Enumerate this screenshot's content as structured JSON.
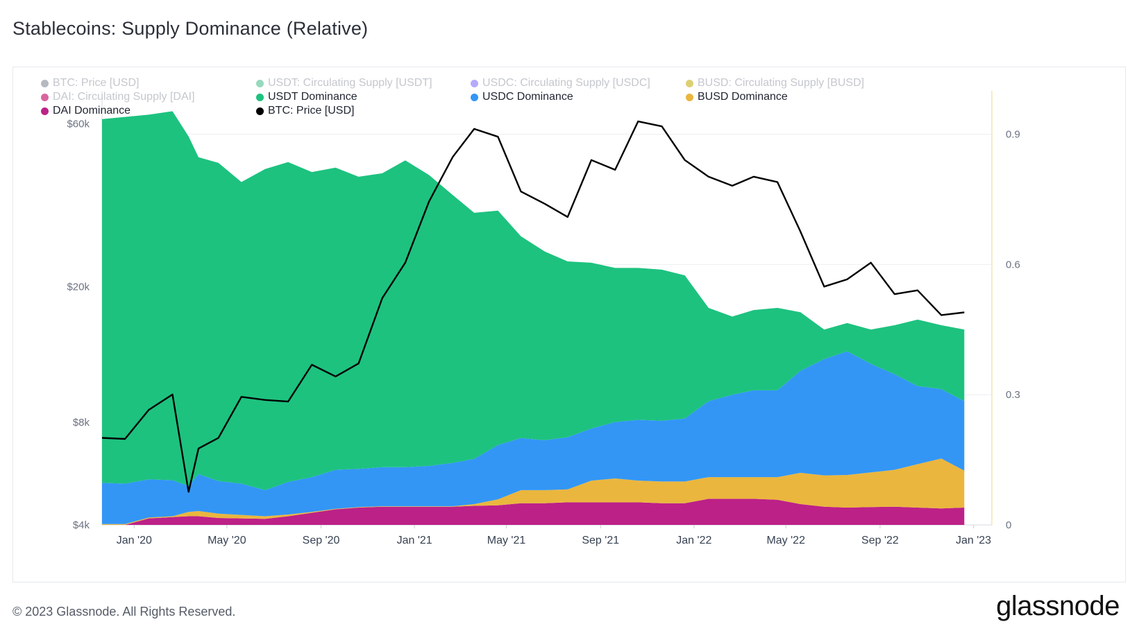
{
  "title": "Stablecoins: Supply Dominance (Relative)",
  "footer": {
    "copyright": "© 2023 Glassnode. All Rights Reserved.",
    "brand": "glassnode"
  },
  "legend": [
    {
      "label": "BTC: Price [USD]",
      "color": "#8e959f",
      "active": false
    },
    {
      "label": "USDT: Circulating Supply [USDT]",
      "color": "#5fc49a",
      "active": false
    },
    {
      "label": "USDC: Circulating Supply [USDC]",
      "color": "#8a7cf7",
      "active": false
    },
    {
      "label": "BUSD: Circulating Supply [BUSD]",
      "color": "#c9b72a",
      "active": false
    },
    {
      "label": "DAI: Circulating Supply [DAI]",
      "color": "#c4126a",
      "active": false
    },
    {
      "label": "USDT Dominance",
      "color": "#1dc27f",
      "active": true
    },
    {
      "label": "USDC Dominance",
      "color": "#3396f5",
      "active": true
    },
    {
      "label": "BUSD Dominance",
      "color": "#eab63e",
      "active": true
    },
    {
      "label": "DAI Dominance",
      "color": "#bc2187",
      "active": true
    },
    {
      "label": "BTC: Price [USD]",
      "color": "#000000",
      "active": true
    }
  ],
  "chart_data": {
    "type": "area",
    "x_ticks": [
      "Jan '20",
      "May '20",
      "Sep '20",
      "Jan '21",
      "May '21",
      "Sep '21",
      "Jan '22",
      "May '22",
      "Sep '22",
      "Jan '23"
    ],
    "y_left": {
      "scale": "log",
      "ticks": [
        "$4k",
        "$8k",
        "$20k",
        "$60k"
      ],
      "tick_values": [
        4000,
        8000,
        20000,
        60000
      ],
      "range": [
        4000,
        75000
      ]
    },
    "y_right": {
      "scale": "linear",
      "ticks": [
        "0",
        "0.3",
        "0.6",
        "0.9"
      ],
      "tick_values": [
        0,
        0.3,
        0.6,
        0.9
      ],
      "range": [
        0,
        1.0
      ]
    },
    "dates": [
      "2019-11-20",
      "2019-12-20",
      "2020-01-20",
      "2020-02-20",
      "2020-03-12",
      "2020-03-25",
      "2020-04-20",
      "2020-05-20",
      "2020-06-20",
      "2020-07-20",
      "2020-08-20",
      "2020-09-20",
      "2020-10-20",
      "2020-11-20",
      "2020-12-20",
      "2021-01-20",
      "2021-02-20",
      "2021-03-20",
      "2021-04-20",
      "2021-05-20",
      "2021-06-20",
      "2021-07-20",
      "2021-08-20",
      "2021-09-20",
      "2021-10-20",
      "2021-11-20",
      "2021-12-20",
      "2022-01-20",
      "2022-02-20",
      "2022-03-20",
      "2022-04-20",
      "2022-05-20",
      "2022-06-20",
      "2022-07-20",
      "2022-08-20",
      "2022-09-20",
      "2022-10-20",
      "2022-11-20",
      "2022-12-20"
    ],
    "series": [
      {
        "name": "DAI Dominance",
        "values": [
          0.0,
          0.0,
          0.015,
          0.018,
          0.02,
          0.02,
          0.016,
          0.015,
          0.014,
          0.02,
          0.028,
          0.036,
          0.04,
          0.042,
          0.042,
          0.042,
          0.042,
          0.044,
          0.045,
          0.05,
          0.05,
          0.052,
          0.052,
          0.052,
          0.052,
          0.05,
          0.05,
          0.06,
          0.06,
          0.06,
          0.058,
          0.048,
          0.042,
          0.04,
          0.041,
          0.042,
          0.04,
          0.038,
          0.04
        ]
      },
      {
        "name": "BUSD Dominance",
        "values": [
          0.002,
          0.002,
          0.002,
          0.002,
          0.01,
          0.012,
          0.01,
          0.008,
          0.006,
          0.004,
          0.002,
          0.001,
          0.001,
          0.001,
          0.001,
          0.001,
          0.001,
          0.004,
          0.014,
          0.03,
          0.03,
          0.03,
          0.05,
          0.055,
          0.05,
          0.05,
          0.05,
          0.05,
          0.05,
          0.05,
          0.052,
          0.072,
          0.072,
          0.075,
          0.08,
          0.085,
          0.1,
          0.115,
          0.085
        ]
      },
      {
        "name": "USDC Dominance",
        "values": [
          0.095,
          0.093,
          0.088,
          0.083,
          0.06,
          0.085,
          0.075,
          0.072,
          0.06,
          0.075,
          0.08,
          0.09,
          0.088,
          0.09,
          0.09,
          0.093,
          0.1,
          0.104,
          0.125,
          0.12,
          0.115,
          0.12,
          0.12,
          0.13,
          0.14,
          0.14,
          0.145,
          0.175,
          0.19,
          0.2,
          0.2,
          0.235,
          0.268,
          0.285,
          0.25,
          0.22,
          0.18,
          0.16,
          0.16
        ]
      },
      {
        "name": "USDT Dominance",
        "values": [
          0.838,
          0.845,
          0.84,
          0.85,
          0.805,
          0.73,
          0.733,
          0.695,
          0.74,
          0.737,
          0.703,
          0.696,
          0.673,
          0.677,
          0.707,
          0.67,
          0.617,
          0.567,
          0.54,
          0.465,
          0.435,
          0.405,
          0.382,
          0.355,
          0.35,
          0.348,
          0.33,
          0.215,
          0.18,
          0.185,
          0.19,
          0.135,
          0.068,
          0.065,
          0.079,
          0.113,
          0.153,
          0.147,
          0.165
        ]
      },
      {
        "name": "BTC: Price [USD]",
        "axis": "left",
        "values": [
          7200,
          7150,
          8700,
          9650,
          5000,
          6700,
          7200,
          9500,
          9300,
          9200,
          11800,
          10900,
          11900,
          18500,
          23500,
          35500,
          48000,
          58000,
          55000,
          38000,
          35000,
          32000,
          47000,
          44000,
          61000,
          59000,
          47000,
          42000,
          39500,
          42000,
          40500,
          29000,
          20000,
          21000,
          23500,
          19000,
          19500,
          16500,
          16800
        ]
      }
    ],
    "stack_order": [
      "DAI Dominance",
      "BUSD Dominance",
      "USDC Dominance",
      "USDT Dominance"
    ],
    "grid": true,
    "legend_position": "top-left"
  }
}
